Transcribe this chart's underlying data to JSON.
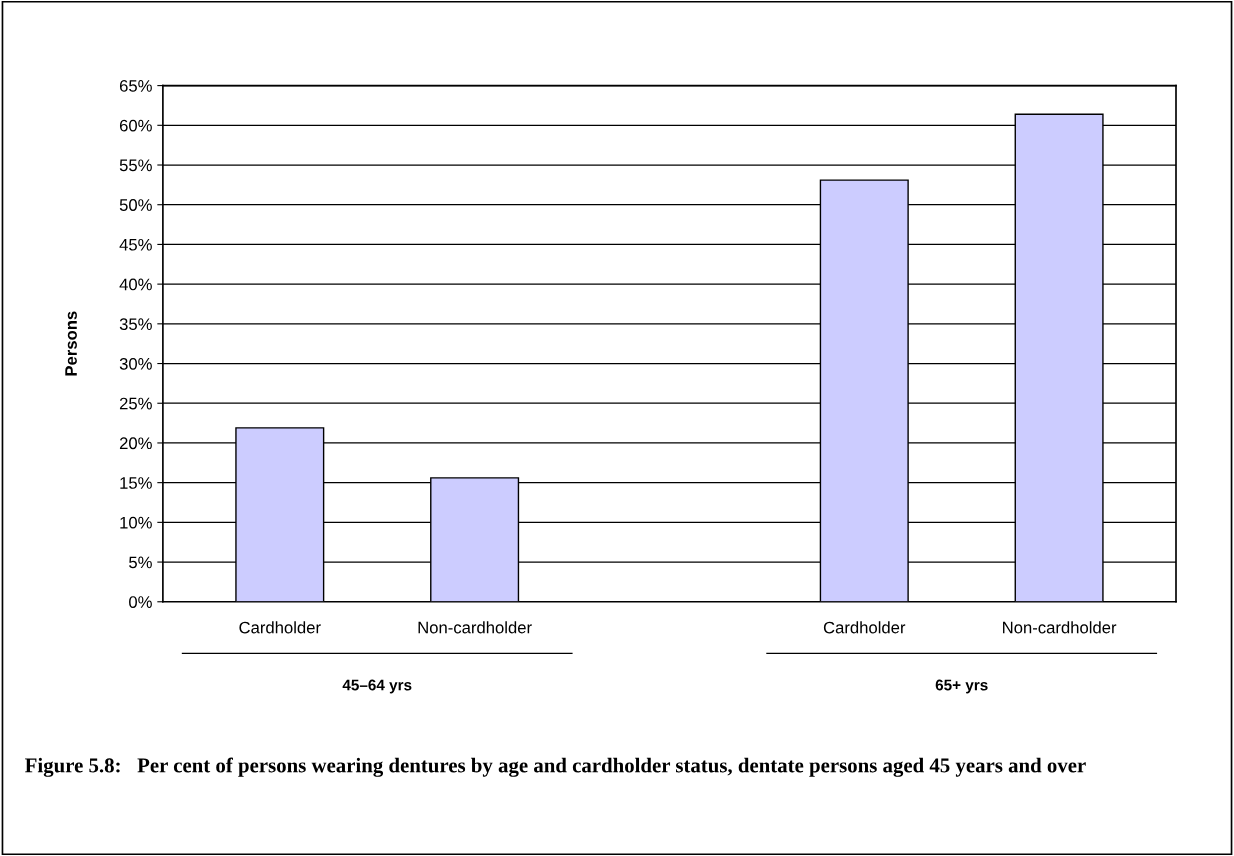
{
  "chart_data": {
    "type": "bar",
    "title": "Figure 5.8:   Per cent of persons wearing dentures by age and cardholder status, dentate persons aged 45 years and over",
    "ylabel": "Persons",
    "categories": [
      "Cardholder",
      "Non-cardholder",
      null,
      "Cardholder",
      "Non-cardholder"
    ],
    "values": [
      21.9,
      15.6,
      null,
      53.1,
      61.4
    ],
    "color": "#ccccff",
    "annotations": [
      "45–64 yrs",
      "65+ yrs"
    ],
    "ylim": [
      0,
      65
    ],
    "yticks": [
      {
        "value": 0,
        "label": "0%"
      },
      {
        "value": 5,
        "label": "5%"
      },
      {
        "value": 10,
        "label": "10%"
      },
      {
        "value": 15,
        "label": "15%"
      },
      {
        "value": 20,
        "label": "20%"
      },
      {
        "value": 25,
        "label": "25%"
      },
      {
        "value": 30,
        "label": "30%"
      },
      {
        "value": 35,
        "label": "35%"
      },
      {
        "value": 40,
        "label": "40%"
      },
      {
        "value": 45,
        "label": "45%"
      },
      {
        "value": 50,
        "label": "50%"
      },
      {
        "value": 55,
        "label": "55%"
      },
      {
        "value": 60,
        "label": "60%"
      },
      {
        "value": 65,
        "label": "65%"
      }
    ],
    "grid": "y"
  }
}
